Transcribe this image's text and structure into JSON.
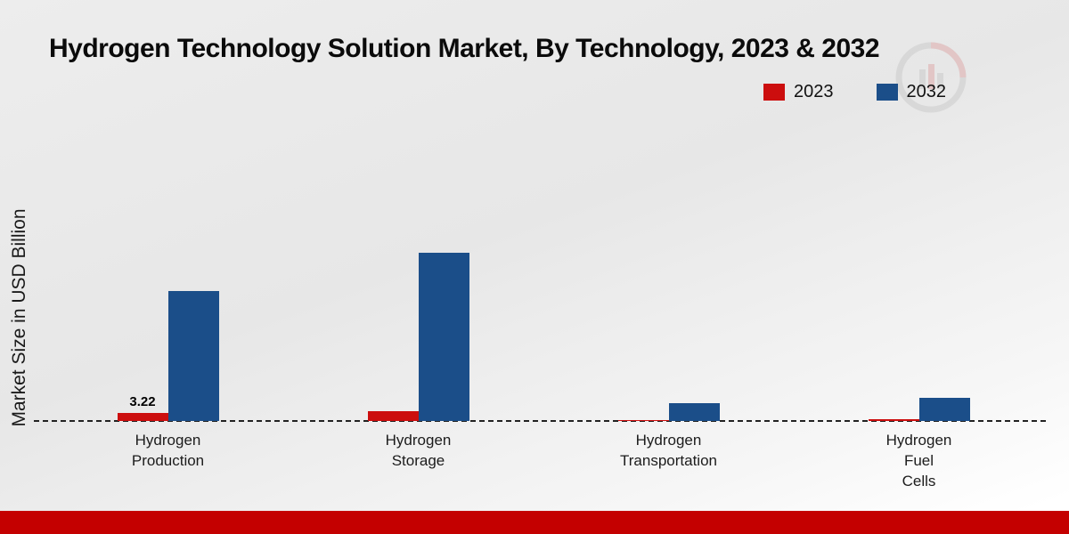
{
  "colors": {
    "series_2023_red": "#cc0e0e",
    "series_2032_blue": "#1b4e89",
    "footer_red": "#c40000",
    "baseline": "#222222"
  },
  "footer": {
    "color": "#c40000"
  },
  "chart_data": {
    "type": "bar",
    "title": "Hydrogen Technology Solution Market, By Technology, 2023 & 2032",
    "xlabel": "",
    "ylabel": "Market Size in USD Billion",
    "ylim": [
      0,
      100
    ],
    "grid": false,
    "legend_position": "top-right",
    "baseline_style": "dashed",
    "categories": [
      {
        "label": "Hydrogen Production",
        "lines": [
          "Hydrogen",
          "Production"
        ]
      },
      {
        "label": "Hydrogen Storage",
        "lines": [
          "Hydrogen",
          "Storage"
        ]
      },
      {
        "label": "Hydrogen Transportation",
        "lines": [
          "Hydrogen",
          "Transportation"
        ]
      },
      {
        "label": "Hydrogen Fuel Cells",
        "lines": [
          "Hydrogen",
          "Fuel",
          "Cells"
        ]
      }
    ],
    "series": [
      {
        "name": "2023",
        "color": "#cc0e0e",
        "values": [
          3.22,
          4.1,
          0.5,
          0.6
        ],
        "value_labels": [
          "3.22",
          "",
          "",
          ""
        ]
      },
      {
        "name": "2032",
        "color": "#1b4e89",
        "values": [
          52.1,
          67.5,
          7.2,
          9.3
        ],
        "value_labels": [
          "",
          "",
          "",
          ""
        ]
      }
    ]
  }
}
